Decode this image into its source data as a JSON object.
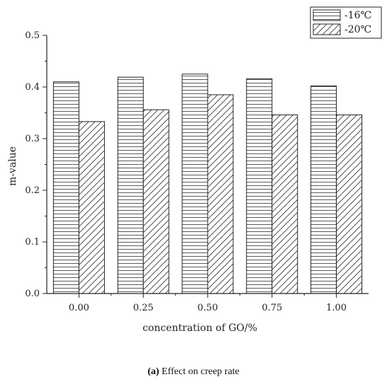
{
  "chart_data": {
    "type": "bar",
    "categories": [
      "0.00",
      "0.25",
      "0.50",
      "0.75",
      "1.00"
    ],
    "series": [
      {
        "name": "-16℃",
        "pattern": "horizontal-lines",
        "values": [
          0.41,
          0.419,
          0.425,
          0.416,
          0.402
        ]
      },
      {
        "name": "-20℃",
        "pattern": "diagonal-lines",
        "values": [
          0.333,
          0.356,
          0.385,
          0.346,
          0.346
        ]
      }
    ],
    "title": "",
    "xlabel": "concentration of GO/%",
    "ylabel": "m-value",
    "ylim": [
      0,
      0.5
    ],
    "yticks": [
      "0.0",
      "0.1",
      "0.2",
      "0.3",
      "0.4",
      "0.5"
    ],
    "grid": false,
    "legend_position": "top-right"
  },
  "caption": {
    "label": "(a)",
    "text": "Effect on creep rate"
  }
}
